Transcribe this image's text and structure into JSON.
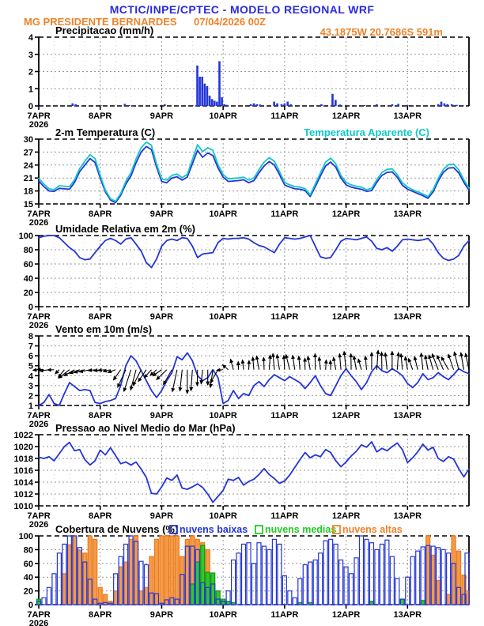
{
  "header": {
    "title": "MCTIC/INPE/CPTEC - MODELO REGIONAL WRF",
    "station": "MG PRESIDENTE BERNARDES",
    "run": "07/04/2026 00Z",
    "location": "43.1875W 20.7686S 591m",
    "title_color": "#2b2bdf",
    "subtitle_color": "#f08228"
  },
  "x_axis": {
    "tick_labels": [
      "7APR",
      "8APR",
      "9APR",
      "10APR",
      "11APR",
      "12APR",
      "13APR"
    ],
    "year_label": "2026",
    "xlim": [
      7,
      14
    ],
    "t_step_days": 0.0833333
  },
  "chart_data": [
    {
      "type": "bar",
      "name": "precipitacao",
      "title": "Precipitacao (mm/h)",
      "ylabel": "mm/h",
      "ylim": [
        0,
        4
      ],
      "yticks": [
        0,
        1,
        2,
        3,
        4
      ],
      "bar_color": "#2335d6",
      "bars": {
        "t": [
          7.05,
          7.55,
          7.6,
          8.02,
          8.4,
          8.47,
          9.05,
          9.5,
          9.58,
          9.62,
          9.66,
          9.7,
          9.74,
          9.78,
          9.82,
          9.86,
          9.9,
          9.94,
          9.98,
          10.02,
          10.06,
          10.45,
          10.5,
          10.55,
          10.6,
          10.83,
          10.88,
          10.95,
          11.0,
          11.05,
          11.1,
          11.6,
          11.78,
          11.83,
          11.9,
          12.3,
          12.5,
          12.75,
          12.85,
          13.0,
          13.5,
          13.55,
          13.6,
          13.65,
          13.72,
          13.8,
          13.9
        ],
        "v": [
          0.05,
          0.15,
          0.1,
          0.03,
          0.12,
          0.05,
          0.1,
          0.04,
          2.35,
          1.7,
          1.7,
          1.3,
          1.15,
          0.6,
          0.4,
          0.3,
          0.25,
          2.6,
          0.5,
          0.1,
          0.06,
          0.1,
          0.15,
          0.1,
          0.08,
          0.25,
          0.15,
          0.1,
          0.15,
          0.25,
          0.1,
          0.1,
          0.7,
          0.35,
          0.08,
          0.05,
          0.1,
          0.1,
          0.12,
          0.05,
          0.1,
          0.25,
          0.15,
          0.1,
          0.1,
          0.06,
          0.05
        ]
      }
    },
    {
      "type": "line",
      "name": "temperatura",
      "title": "2-m Temperatura (C)",
      "legend_right": {
        "label": "Temperatura Aparente (C)",
        "color": "#10c8c8"
      },
      "ylim": [
        15,
        30
      ],
      "yticks": [
        15,
        18,
        21,
        24,
        27,
        30
      ],
      "series": [
        {
          "name": "2-m Temperatura",
          "color": "#2335d6",
          "values": [
            20.3,
            19.0,
            18.0,
            17.9,
            18.6,
            18.5,
            18.4,
            20.0,
            22.5,
            24.0,
            25.5,
            24.6,
            21.0,
            17.8,
            15.9,
            15.3,
            17.0,
            19.6,
            21.5,
            24.5,
            27.0,
            28.3,
            27.6,
            23.5,
            20.2,
            19.9,
            21.0,
            21.3,
            20.5,
            21.2,
            24.3,
            27.4,
            25.8,
            26.8,
            26.2,
            23.3,
            21.2,
            20.2,
            20.3,
            20.4,
            20.6,
            19.9,
            20.4,
            22.2,
            23.8,
            24.8,
            24.0,
            21.8,
            19.4,
            18.9,
            18.5,
            18.4,
            18.1,
            16.7,
            19.0,
            21.5,
            23.8,
            24.7,
            23.5,
            21.0,
            19.4,
            18.9,
            18.6,
            18.4,
            17.9,
            18.1,
            20.0,
            21.6,
            22.3,
            22.4,
            21.2,
            19.3,
            18.4,
            17.9,
            17.4,
            16.9,
            16.3,
            17.8,
            20.3,
            22.3,
            23.3,
            23.4,
            22.2,
            20.0,
            18.2
          ]
        },
        {
          "name": "Temperatura Aparente",
          "color": "#10c8c8",
          "values": [
            20.9,
            19.6,
            18.5,
            18.3,
            19.2,
            19.1,
            19.0,
            20.6,
            23.2,
            24.9,
            26.4,
            25.5,
            21.6,
            18.2,
            16.2,
            15.6,
            17.4,
            20.2,
            22.2,
            25.4,
            28.0,
            29.3,
            28.6,
            24.2,
            20.8,
            20.5,
            21.6,
            21.9,
            21.1,
            21.8,
            25.3,
            28.7,
            27.1,
            28.0,
            27.4,
            24.1,
            21.8,
            20.8,
            20.9,
            21.0,
            21.2,
            20.5,
            21.0,
            22.9,
            24.7,
            25.7,
            24.9,
            22.5,
            20.0,
            19.4,
            19.0,
            18.9,
            18.5,
            17.1,
            19.6,
            22.2,
            24.7,
            25.6,
            24.3,
            21.6,
            20.0,
            19.4,
            19.1,
            18.9,
            18.3,
            18.6,
            20.6,
            22.3,
            23.0,
            23.1,
            21.8,
            19.9,
            18.9,
            18.3,
            17.8,
            17.3,
            16.7,
            18.3,
            20.9,
            23.0,
            24.1,
            24.2,
            22.9,
            20.6,
            18.7
          ]
        }
      ]
    },
    {
      "type": "line",
      "name": "umidade",
      "title": "Umidade Relativa em 2m (%)",
      "ylim": [
        0,
        100
      ],
      "yticks": [
        0,
        20,
        40,
        60,
        80,
        100
      ],
      "series": [
        {
          "name": "Umidade Relativa",
          "color": "#2335d6",
          "values": [
            97,
            99,
            100,
            100,
            97,
            90,
            83,
            78,
            69,
            66,
            67,
            76,
            85,
            93,
            96,
            93,
            88,
            95,
            97,
            88,
            78,
            62,
            55,
            67,
            85,
            93,
            95,
            93,
            97,
            96,
            85,
            69,
            74,
            75,
            76,
            90,
            96,
            95,
            96,
            96,
            97,
            95,
            90,
            86,
            84,
            80,
            76,
            88,
            97,
            96,
            95,
            96,
            98,
            100,
            85,
            70,
            68,
            69,
            80,
            92,
            96,
            95,
            94,
            96,
            98,
            92,
            82,
            80,
            83,
            78,
            85,
            94,
            95,
            94,
            93,
            94,
            96,
            88,
            76,
            68,
            65,
            67,
            72,
            85,
            93
          ]
        }
      ]
    },
    {
      "type": "line",
      "name": "vento",
      "title": "Vento em 10m (m/s)",
      "ylim": [
        1,
        8
      ],
      "yticks": [
        1,
        2,
        3,
        4,
        5,
        6,
        7,
        8
      ],
      "series": [
        {
          "name": "Velocidade do Vento",
          "color": "#2335d6",
          "values": [
            1.0,
            1.3,
            2.1,
            1.2,
            1.0,
            2.2,
            3.3,
            2.9,
            2.5,
            2.6,
            2.5,
            1.3,
            1.2,
            1.4,
            1.5,
            1.7,
            3.0,
            5.0,
            6.0,
            5.5,
            4.5,
            3.5,
            2.5,
            1.8,
            2.5,
            3.5,
            4.3,
            5.9,
            5.6,
            6.3,
            5.5,
            4.0,
            3.5,
            3.8,
            4.6,
            3.8,
            1.2,
            1.5,
            2.5,
            1.7,
            2.2,
            2.0,
            3.0,
            3.4,
            2.9,
            3.6,
            4.1,
            3.8,
            3.5,
            3.9,
            3.6,
            3.3,
            2.7,
            3.3,
            4.0,
            3.0,
            2.2,
            2.0,
            3.0,
            4.0,
            4.7,
            4.0,
            3.4,
            2.6,
            3.3,
            4.4,
            5.0,
            4.5,
            4.3,
            4.7,
            4.4,
            4.0,
            3.2,
            2.8,
            3.3,
            4.2,
            3.6,
            3.8,
            4.3,
            3.9,
            3.6,
            4.1,
            4.7,
            4.4,
            4.2
          ]
        }
      ],
      "arrows": {
        "anchor_y": 4.6,
        "color": "#000000",
        "dir_deg": [
          185,
          178,
          188,
          182,
          225,
          232,
          218,
          210,
          200,
          195,
          192,
          188,
          190,
          186,
          194,
          200,
          235,
          245,
          252,
          255,
          243,
          236,
          228,
          222,
          215,
          224,
          240,
          258,
          264,
          270,
          266,
          269,
          264,
          270,
          262,
          240,
          185,
          140,
          105,
          92,
          97,
          88,
          95,
          100,
          92,
          86,
          95,
          99,
          93,
          104,
          99,
          95,
          91,
          100,
          91,
          96,
          86,
          92,
          101,
          95,
          96,
          91,
          100,
          106,
          95,
          90,
          86,
          91,
          96,
          90,
          86,
          95,
          100,
          110,
          104,
          96,
          101,
          106,
          111,
          114,
          119,
          109,
          104,
          100,
          102
        ]
      }
    },
    {
      "type": "line",
      "name": "pressao",
      "title": "Pressao ao Nivel Medio do Mar (hPa)",
      "ylim": [
        1010,
        1022
      ],
      "yticks": [
        1010,
        1012,
        1014,
        1016,
        1018,
        1020,
        1022
      ],
      "series": [
        {
          "name": "Pressao",
          "color": "#2335d6",
          "values": [
            1018.2,
            1018.0,
            1018.3,
            1017.6,
            1018.8,
            1020.0,
            1020.7,
            1019.3,
            1019.5,
            1017.8,
            1016.9,
            1017.6,
            1019.4,
            1018.6,
            1019.8,
            1018.5,
            1017.1,
            1017.4,
            1016.9,
            1017.4,
            1016.2,
            1014.8,
            1012.1,
            1012.0,
            1013.2,
            1014.7,
            1014.3,
            1015.2,
            1013.0,
            1012.8,
            1013.2,
            1013.7,
            1013.1,
            1012.0,
            1010.6,
            1011.6,
            1012.6,
            1014.5,
            1014.3,
            1014.8,
            1013.5,
            1014.1,
            1014.5,
            1015.3,
            1016.3,
            1015.3,
            1014.6,
            1013.8,
            1014.2,
            1015.2,
            1016.5,
            1017.8,
            1019.0,
            1018.1,
            1018.6,
            1018.3,
            1019.5,
            1019.0,
            1017.6,
            1016.6,
            1017.4,
            1018.4,
            1019.2,
            1020.3,
            1019.9,
            1020.8,
            1019.1,
            1019.7,
            1019.3,
            1020.0,
            1020.6,
            1019.5,
            1017.3,
            1018.1,
            1019.1,
            1020.4,
            1019.4,
            1019.9,
            1018.0,
            1017.5,
            1018.3,
            1017.9,
            1016.3,
            1014.9,
            1016.2
          ]
        }
      ]
    },
    {
      "type": "outline-bar",
      "name": "nuvens",
      "title": "Cobertura de Nuvens (%)",
      "ylim": [
        0,
        100
      ],
      "yticks": [
        0,
        20,
        40,
        60,
        80,
        100
      ],
      "legend": [
        {
          "label": "nuvens baixas",
          "color": "#2335d6"
        },
        {
          "label": "nuvens medias",
          "color": "#22cc22"
        },
        {
          "label": "nuvens altas",
          "color": "#f08228"
        }
      ],
      "series": [
        {
          "name": "nuvens altas",
          "fill": "#f59a47",
          "stroke": "#ea7a1f",
          "values": [
            0,
            0,
            0,
            0,
            0,
            45,
            87,
            100,
            79,
            75,
            100,
            95,
            25,
            15,
            5,
            20,
            55,
            62,
            95,
            100,
            20,
            25,
            70,
            95,
            100,
            100,
            100,
            100,
            70,
            95,
            100,
            95,
            90,
            80,
            30,
            10,
            5,
            3,
            0,
            0,
            0,
            0,
            0,
            0,
            0,
            0,
            0,
            0,
            0,
            0,
            0,
            0,
            0,
            0,
            0,
            0,
            0,
            0,
            0,
            0,
            0,
            0,
            0,
            0,
            0,
            0,
            0,
            0,
            0,
            0,
            0,
            0,
            0,
            0,
            0,
            0,
            100,
            72,
            35,
            0,
            15,
            100,
            78,
            43,
            20
          ]
        },
        {
          "name": "nuvens medias",
          "fill": "#2fc82f",
          "stroke": "#109410",
          "values": [
            8,
            0,
            0,
            0,
            0,
            0,
            0,
            0,
            0,
            0,
            0,
            0,
            0,
            0,
            0,
            0,
            0,
            0,
            0,
            0,
            0,
            0,
            0,
            0,
            0,
            0,
            0,
            0,
            0,
            0,
            30,
            62,
            86,
            47,
            46,
            20,
            8,
            5,
            3,
            0,
            0,
            0,
            0,
            0,
            0,
            0,
            0,
            0,
            0,
            0,
            0,
            3,
            0,
            3,
            0,
            0,
            0,
            0,
            0,
            0,
            0,
            0,
            0,
            0,
            0,
            5,
            0,
            0,
            0,
            0,
            0,
            8,
            0,
            0,
            0,
            6,
            0,
            0,
            0,
            0,
            0,
            0,
            0,
            0,
            0
          ]
        },
        {
          "name": "nuvens baixas",
          "fill": "none",
          "stroke": "#2335d6",
          "values": [
            5,
            10,
            25,
            45,
            75,
            88,
            100,
            100,
            83,
            62,
            37,
            8,
            2,
            3,
            2,
            45,
            70,
            88,
            100,
            92,
            63,
            58,
            17,
            16,
            2,
            7,
            10,
            8,
            44,
            85,
            85,
            80,
            32,
            25,
            30,
            8,
            5,
            20,
            65,
            75,
            88,
            90,
            60,
            90,
            85,
            80,
            95,
            88,
            42,
            20,
            10,
            38,
            58,
            62,
            65,
            75,
            93,
            95,
            88,
            65,
            55,
            45,
            68,
            100,
            95,
            90,
            80,
            88,
            94,
            70,
            38,
            8,
            40,
            70,
            78,
            84,
            86,
            85,
            83,
            80,
            75,
            60,
            25,
            15,
            75
          ]
        }
      ]
    }
  ]
}
